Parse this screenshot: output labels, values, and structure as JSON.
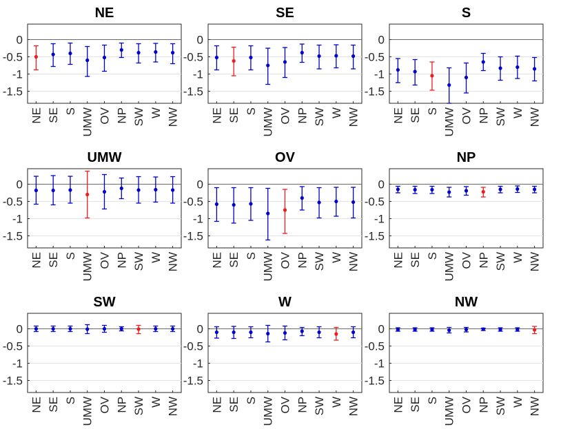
{
  "chart_data": {
    "type": "errorbar",
    "categories": [
      "NE",
      "SE",
      "S",
      "UMW",
      "OV",
      "NP",
      "SW",
      "W",
      "NW"
    ],
    "ylim": [
      -1.85,
      0.45
    ],
    "yticks": [
      0,
      -0.5,
      -1,
      -1.5
    ],
    "ytick_labels": [
      "0",
      "-0.5",
      "-1",
      "-1.5"
    ],
    "grid": "horizontal",
    "colors": {
      "default": "#0000cc",
      "highlight": "#ee1c1c"
    },
    "panels": [
      {
        "title": "NE",
        "highlight": "NE",
        "series": [
          {
            "name": "NE",
            "value": -0.5,
            "lower": -0.88,
            "upper": -0.18
          },
          {
            "name": "SE",
            "value": -0.43,
            "lower": -0.78,
            "upper": -0.12
          },
          {
            "name": "S",
            "value": -0.4,
            "lower": -0.72,
            "upper": -0.1
          },
          {
            "name": "UMW",
            "value": -0.6,
            "lower": -1.07,
            "upper": -0.2
          },
          {
            "name": "OV",
            "value": -0.52,
            "lower": -0.92,
            "upper": -0.16
          },
          {
            "name": "NP",
            "value": -0.3,
            "lower": -0.52,
            "upper": -0.1
          },
          {
            "name": "SW",
            "value": -0.38,
            "lower": -0.68,
            "upper": -0.12
          },
          {
            "name": "W",
            "value": -0.36,
            "lower": -0.65,
            "upper": -0.11
          },
          {
            "name": "NW",
            "value": -0.38,
            "lower": -0.7,
            "upper": -0.12
          }
        ]
      },
      {
        "title": "SE",
        "highlight": "SE",
        "series": [
          {
            "name": "NE",
            "value": -0.52,
            "lower": -0.88,
            "upper": -0.18
          },
          {
            "name": "SE",
            "value": -0.62,
            "lower": -1.05,
            "upper": -0.22
          },
          {
            "name": "S",
            "value": -0.52,
            "lower": -0.88,
            "upper": -0.18
          },
          {
            "name": "UMW",
            "value": -0.75,
            "lower": -1.3,
            "upper": -0.25
          },
          {
            "name": "OV",
            "value": -0.65,
            "lower": -1.1,
            "upper": -0.23
          },
          {
            "name": "NP",
            "value": -0.38,
            "lower": -0.66,
            "upper": -0.13
          },
          {
            "name": "SW",
            "value": -0.48,
            "lower": -0.85,
            "upper": -0.16
          },
          {
            "name": "W",
            "value": -0.47,
            "lower": -0.82,
            "upper": -0.15
          },
          {
            "name": "NW",
            "value": -0.48,
            "lower": -0.85,
            "upper": -0.16
          }
        ]
      },
      {
        "title": "S",
        "highlight": "S",
        "series": [
          {
            "name": "NE",
            "value": -0.88,
            "lower": -1.25,
            "upper": -0.55
          },
          {
            "name": "SE",
            "value": -0.93,
            "lower": -1.32,
            "upper": -0.58
          },
          {
            "name": "S",
            "value": -1.05,
            "lower": -1.47,
            "upper": -0.65
          },
          {
            "name": "UMW",
            "value": -1.32,
            "lower": -1.85,
            "upper": -0.82
          },
          {
            "name": "OV",
            "value": -1.1,
            "lower": -1.55,
            "upper": -0.68
          },
          {
            "name": "NP",
            "value": -0.65,
            "lower": -0.9,
            "upper": -0.4
          },
          {
            "name": "SW",
            "value": -0.83,
            "lower": -1.18,
            "upper": -0.5
          },
          {
            "name": "W",
            "value": -0.8,
            "lower": -1.13,
            "upper": -0.48
          },
          {
            "name": "NW",
            "value": -0.85,
            "lower": -1.2,
            "upper": -0.52
          }
        ]
      },
      {
        "title": "UMW",
        "highlight": "UMW",
        "series": [
          {
            "name": "NE",
            "value": -0.18,
            "lower": -0.58,
            "upper": 0.23
          },
          {
            "name": "SE",
            "value": -0.18,
            "lower": -0.6,
            "upper": 0.25
          },
          {
            "name": "S",
            "value": -0.17,
            "lower": -0.55,
            "upper": 0.23
          },
          {
            "name": "UMW",
            "value": -0.3,
            "lower": -0.98,
            "upper": 0.38
          },
          {
            "name": "OV",
            "value": -0.22,
            "lower": -0.72,
            "upper": 0.28
          },
          {
            "name": "NP",
            "value": -0.12,
            "lower": -0.42,
            "upper": 0.18
          },
          {
            "name": "SW",
            "value": -0.17,
            "lower": -0.55,
            "upper": 0.22
          },
          {
            "name": "W",
            "value": -0.16,
            "lower": -0.52,
            "upper": 0.21
          },
          {
            "name": "NW",
            "value": -0.17,
            "lower": -0.55,
            "upper": 0.22
          }
        ]
      },
      {
        "title": "OV",
        "highlight": "OV",
        "series": [
          {
            "name": "NE",
            "value": -0.58,
            "lower": -1.08,
            "upper": -0.1
          },
          {
            "name": "SE",
            "value": -0.6,
            "lower": -1.13,
            "upper": -0.1
          },
          {
            "name": "S",
            "value": -0.57,
            "lower": -1.05,
            "upper": -0.1
          },
          {
            "name": "UMW",
            "value": -0.85,
            "lower": -1.62,
            "upper": -0.12
          },
          {
            "name": "OV",
            "value": -0.75,
            "lower": -1.43,
            "upper": -0.15
          },
          {
            "name": "NP",
            "value": -0.4,
            "lower": -0.75,
            "upper": -0.07
          },
          {
            "name": "SW",
            "value": -0.53,
            "lower": -0.98,
            "upper": -0.1
          },
          {
            "name": "W",
            "value": -0.5,
            "lower": -0.93,
            "upper": -0.09
          },
          {
            "name": "NW",
            "value": -0.52,
            "lower": -0.98,
            "upper": -0.09
          }
        ]
      },
      {
        "title": "NP",
        "highlight": "NP",
        "series": [
          {
            "name": "NE",
            "value": -0.15,
            "lower": -0.25,
            "upper": -0.06
          },
          {
            "name": "SE",
            "value": -0.16,
            "lower": -0.27,
            "upper": -0.06
          },
          {
            "name": "S",
            "value": -0.16,
            "lower": -0.27,
            "upper": -0.06
          },
          {
            "name": "UMW",
            "value": -0.23,
            "lower": -0.37,
            "upper": -0.09
          },
          {
            "name": "OV",
            "value": -0.19,
            "lower": -0.32,
            "upper": -0.07
          },
          {
            "name": "NP",
            "value": -0.22,
            "lower": -0.37,
            "upper": -0.09
          },
          {
            "name": "SW",
            "value": -0.15,
            "lower": -0.25,
            "upper": -0.06
          },
          {
            "name": "W",
            "value": -0.14,
            "lower": -0.24,
            "upper": -0.05
          },
          {
            "name": "NW",
            "value": -0.15,
            "lower": -0.25,
            "upper": -0.06
          }
        ]
      },
      {
        "title": "SW",
        "highlight": "SW",
        "series": [
          {
            "name": "NE",
            "value": 0.0,
            "lower": -0.08,
            "upper": 0.08
          },
          {
            "name": "SE",
            "value": 0.0,
            "lower": -0.08,
            "upper": 0.08
          },
          {
            "name": "S",
            "value": 0.0,
            "lower": -0.08,
            "upper": 0.08
          },
          {
            "name": "UMW",
            "value": -0.01,
            "lower": -0.14,
            "upper": 0.12
          },
          {
            "name": "OV",
            "value": 0.0,
            "lower": -0.1,
            "upper": 0.1
          },
          {
            "name": "NP",
            "value": 0.0,
            "lower": -0.06,
            "upper": 0.06
          },
          {
            "name": "SW",
            "value": -0.01,
            "lower": -0.14,
            "upper": 0.1
          },
          {
            "name": "W",
            "value": 0.0,
            "lower": -0.08,
            "upper": 0.08
          },
          {
            "name": "NW",
            "value": 0.0,
            "lower": -0.08,
            "upper": 0.08
          }
        ]
      },
      {
        "title": "W",
        "highlight": "W",
        "series": [
          {
            "name": "NE",
            "value": -0.1,
            "lower": -0.27,
            "upper": 0.06
          },
          {
            "name": "SE",
            "value": -0.1,
            "lower": -0.28,
            "upper": 0.07
          },
          {
            "name": "S",
            "value": -0.1,
            "lower": -0.26,
            "upper": 0.06
          },
          {
            "name": "UMW",
            "value": -0.14,
            "lower": -0.38,
            "upper": 0.1
          },
          {
            "name": "OV",
            "value": -0.12,
            "lower": -0.32,
            "upper": 0.08
          },
          {
            "name": "NP",
            "value": -0.07,
            "lower": -0.2,
            "upper": 0.04
          },
          {
            "name": "SW",
            "value": -0.1,
            "lower": -0.26,
            "upper": 0.06
          },
          {
            "name": "W",
            "value": -0.15,
            "lower": -0.33,
            "upper": 0.04
          },
          {
            "name": "NW",
            "value": -0.1,
            "lower": -0.26,
            "upper": 0.06
          }
        ]
      },
      {
        "title": "NW",
        "highlight": "NW",
        "series": [
          {
            "name": "NE",
            "value": -0.02,
            "lower": -0.07,
            "upper": 0.03
          },
          {
            "name": "SE",
            "value": -0.02,
            "lower": -0.07,
            "upper": 0.03
          },
          {
            "name": "S",
            "value": -0.02,
            "lower": -0.07,
            "upper": 0.03
          },
          {
            "name": "UMW",
            "value": -0.04,
            "lower": -0.12,
            "upper": 0.04
          },
          {
            "name": "OV",
            "value": -0.02,
            "lower": -0.09,
            "upper": 0.04
          },
          {
            "name": "NP",
            "value": -0.01,
            "lower": -0.05,
            "upper": 0.02
          },
          {
            "name": "SW",
            "value": -0.02,
            "lower": -0.07,
            "upper": 0.03
          },
          {
            "name": "W",
            "value": -0.02,
            "lower": -0.07,
            "upper": 0.03
          },
          {
            "name": "NW",
            "value": -0.03,
            "lower": -0.14,
            "upper": 0.07
          }
        ]
      }
    ]
  }
}
